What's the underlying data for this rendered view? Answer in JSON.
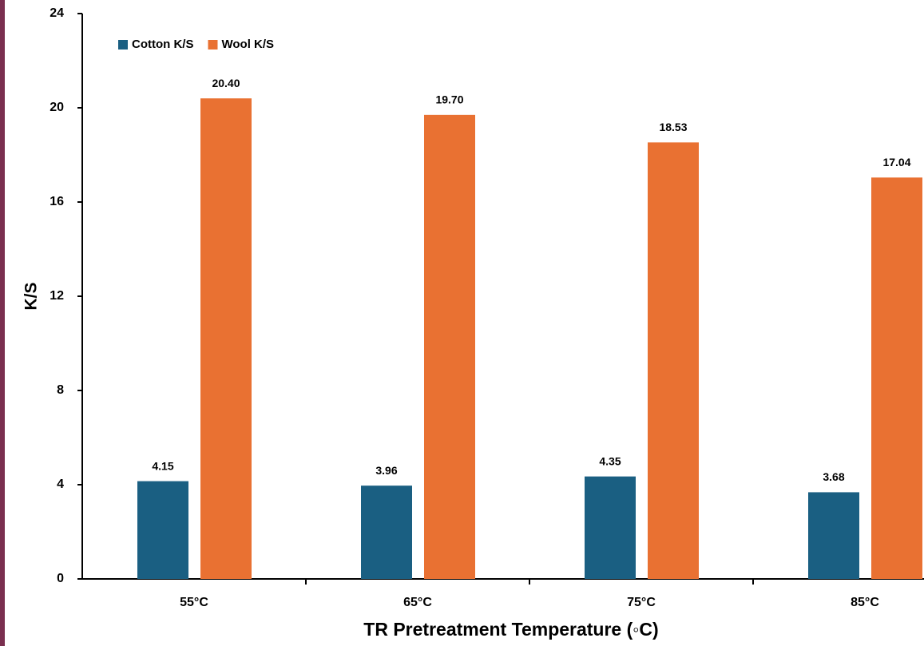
{
  "chart_data": {
    "type": "bar",
    "x_label": "TR Pretreatment Temperature (◦C)",
    "y_label": "K/S",
    "categories": [
      "55°C",
      "65°C",
      "75°C",
      "85°C"
    ],
    "series": [
      {
        "name": "Cotton K/S",
        "color": "#1a5f82",
        "values": [
          4.15,
          3.96,
          4.35,
          3.68
        ],
        "value_labels": [
          "4.15",
          "3.96",
          "4.35",
          "3.68"
        ]
      },
      {
        "name": "Wool K/S",
        "color": "#e97132",
        "values": [
          20.4,
          19.7,
          18.53,
          17.04
        ],
        "value_labels": [
          "20.40",
          "19.70",
          "18.53",
          "17.04"
        ]
      }
    ],
    "ylim": [
      0,
      24
    ],
    "yticks": [
      0,
      4,
      8,
      12,
      16,
      20,
      24
    ],
    "grid": false,
    "legend": "top-left"
  }
}
